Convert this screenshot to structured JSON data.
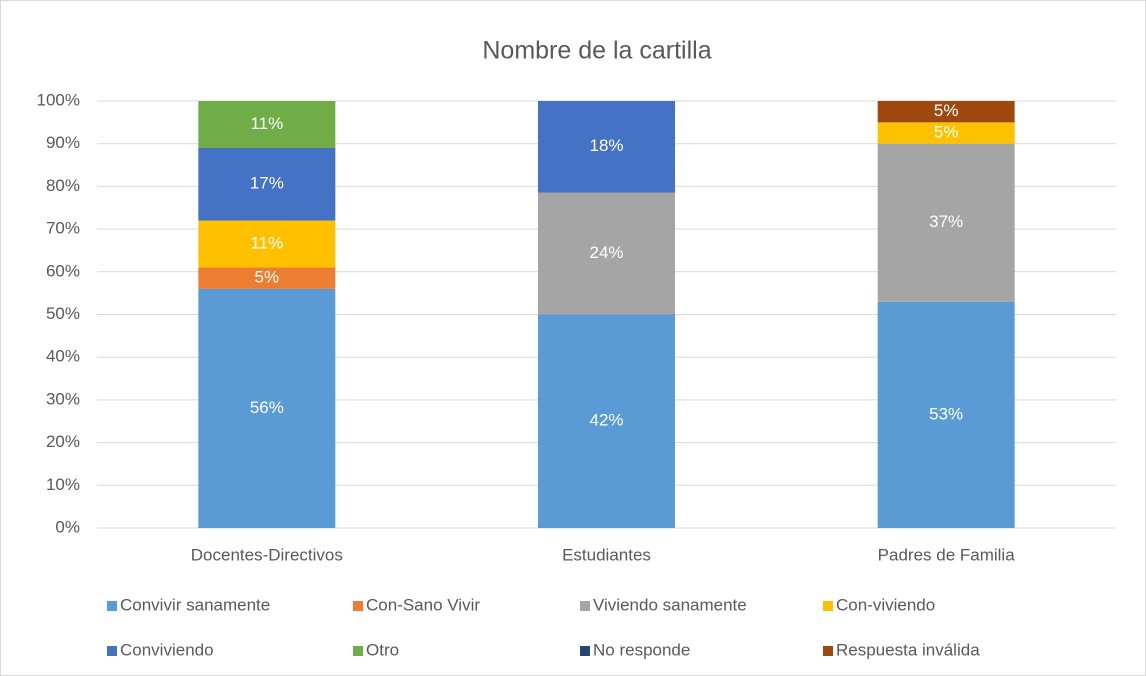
{
  "chart_data": {
    "type": "bar",
    "stacking": "percent",
    "title": "Nombre de la cartilla",
    "categories": [
      "Docentes-Directivos",
      "Estudiantes",
      "Padres de Familia"
    ],
    "series": [
      {
        "name": "Convivir sanamente",
        "color": "#5b9bd5",
        "values": [
          56,
          42,
          53
        ],
        "value_labels": [
          "56%",
          "42%",
          "53%"
        ]
      },
      {
        "name": "Con-Sano Vivir",
        "color": "#ed7d31",
        "values": [
          5,
          null,
          null
        ],
        "value_labels": [
          "5%",
          null,
          null
        ]
      },
      {
        "name": "Viviendo sanamente",
        "color": "#a5a5a5",
        "values": [
          null,
          24,
          37
        ],
        "value_labels": [
          null,
          "24%",
          "37%"
        ]
      },
      {
        "name": "Con-viviendo",
        "color": "#ffc000",
        "values": [
          11,
          null,
          5
        ],
        "value_labels": [
          "11%",
          null,
          "5%"
        ]
      },
      {
        "name": "Conviviendo",
        "color": "#4472c4",
        "values": [
          17,
          18,
          null
        ],
        "value_labels": [
          "17%",
          "18%",
          null
        ]
      },
      {
        "name": "Otro",
        "color": "#70ad47",
        "values": [
          11,
          null,
          null
        ],
        "value_labels": [
          "11%",
          null,
          null
        ]
      },
      {
        "name": "No responde",
        "color": "#264478",
        "values": [
          null,
          null,
          null
        ],
        "value_labels": [
          null,
          null,
          null
        ]
      },
      {
        "name": "Respuesta inválida",
        "color": "#9e480e",
        "values": [
          null,
          null,
          5
        ],
        "value_labels": [
          null,
          null,
          "5%"
        ]
      }
    ],
    "ylim": [
      0,
      100
    ],
    "yticks": [
      {
        "value": 0,
        "label": "0%"
      },
      {
        "value": 10,
        "label": "10%"
      },
      {
        "value": 20,
        "label": "20%"
      },
      {
        "value": 30,
        "label": "30%"
      },
      {
        "value": 40,
        "label": "40%"
      },
      {
        "value": 50,
        "label": "50%"
      },
      {
        "value": 60,
        "label": "60%"
      },
      {
        "value": 70,
        "label": "70%"
      },
      {
        "value": 80,
        "label": "80%"
      },
      {
        "value": 90,
        "label": "90%"
      },
      {
        "value": 100,
        "label": "100%"
      }
    ],
    "grid": true,
    "legend": "bottom"
  }
}
